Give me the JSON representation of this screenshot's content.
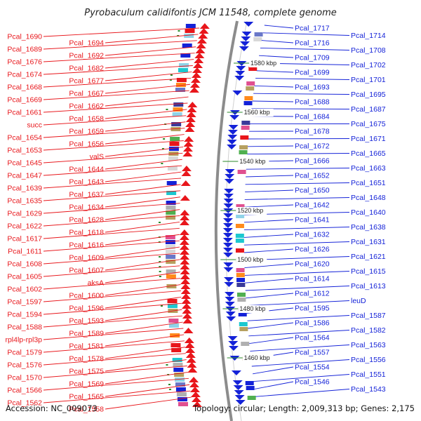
{
  "title": "Pyrobaculum calidifontis JCM 11548, complete genome",
  "footer_left": "Accession: NC_009073",
  "footer_right": "Topology: circular; Length: 2,009,313 bp; Genes: 2,175",
  "colors": {
    "forward": "#e8161b",
    "reverse": "#1422d8",
    "backbone": "#8c8c8c",
    "tick": "#2a8a2a"
  },
  "ticks": [
    "1580 kbp",
    "1560 kbp",
    "1540 kbp",
    "1520 kbp",
    "1500 kbp",
    "1480 kbp",
    "1460 kbp"
  ],
  "left_labels": [
    "Pcal_1690",
    "Pcal_1694",
    "Pcal_1689",
    "Pcal_1692",
    "Pcal_1676",
    "Pcal_1682",
    "Pcal_1674",
    "Pcal_1677",
    "Pcal_1668",
    "Pcal_1667",
    "Pcal_1669",
    "Pcal_1662",
    "Pcal_1661",
    "Pcal_1658",
    "succ",
    "Pcal_1659",
    "Pcal_1654",
    "Pcal_1656",
    "Pcal_1653",
    "valS",
    "Pcal_1645",
    "Pcal_1644",
    "Pcal_1647",
    "Pcal_1643",
    "Pcal_1639",
    "Pcal_1637",
    "Pcal_1635",
    "Pcal_1634",
    "Pcal_1629",
    "Pcal_1628",
    "Pcal_1622",
    "Pcal_1618",
    "Pcal_1617",
    "Pcal_1616",
    "Pcal_1611",
    "Pcal_1609",
    "Pcal_1608",
    "Pcal_1607",
    "Pcal_1605",
    "aksA",
    "Pcal_1602",
    "Pcal_1600",
    "Pcal_1597",
    "Pcal_1596",
    "Pcal_1594",
    "Pcal_1593",
    "Pcal_1588",
    "Pcal_1589",
    "rpl4lp-rpl3p",
    "Pcal_1581",
    "Pcal_1579",
    "Pcal_1578",
    "Pcal_1576",
    "Pcal_1575",
    "Pcal_1570",
    "Pcal_1569",
    "Pcal_1566",
    "Pcal_1565",
    "Pcal_1562",
    "Pcal_1558"
  ],
  "right_labels": [
    "Pcal_1717",
    "Pcal_1714",
    "Pcal_1716",
    "Pcal_1708",
    "Pcal_1709",
    "Pcal_1702",
    "Pcal_1699",
    "Pcal_1701",
    "Pcal_1693",
    "Pcal_1695",
    "Pcal_1688",
    "Pcal_1687",
    "Pcal_1684",
    "Pcal_1675",
    "Pcal_1678",
    "Pcal_1671",
    "Pcal_1672",
    "Pcal_1665",
    "Pcal_1666",
    "Pcal_1663",
    "Pcal_1652",
    "Pcal_1651",
    "Pcal_1650",
    "Pcal_1648",
    "Pcal_1642",
    "Pcal_1640",
    "Pcal_1641",
    "Pcal_1638",
    "Pcal_1632",
    "Pcal_1631",
    "Pcal_1626",
    "Pcal_1621",
    "Pcal_1620",
    "Pcal_1615",
    "Pcal_1614",
    "Pcal_1613",
    "Pcal_1612",
    "leuD",
    "Pcal_1595",
    "Pcal_1587",
    "Pcal_1586",
    "Pcal_1582",
    "Pcal_1564",
    "Pcal_1563",
    "Pcal_1557",
    "Pcal_1556",
    "Pcal_1554",
    "Pcal_1551",
    "Pcal_1546",
    "Pcal_1543"
  ]
}
